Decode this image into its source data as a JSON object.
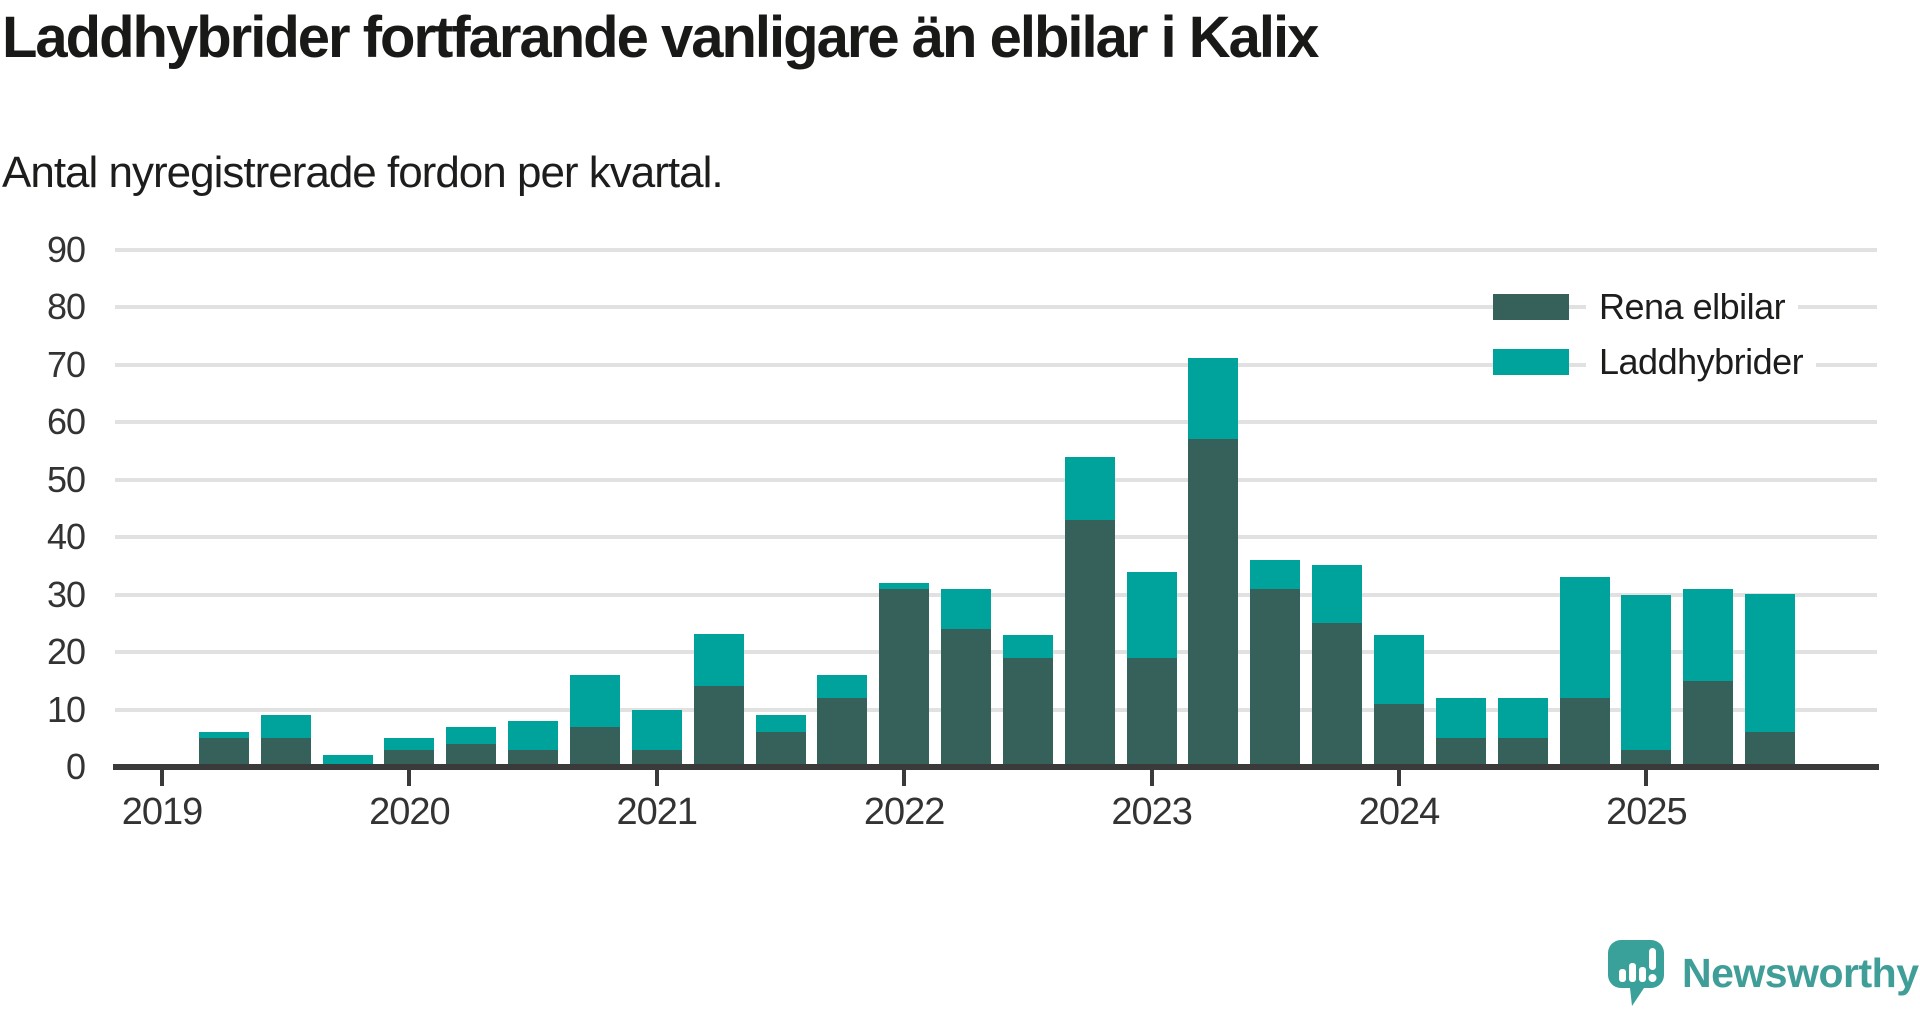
{
  "title": "Laddhybrider fortfarande vanligare än elbilar i Kalix",
  "subtitle": "Antal nyregistrerade fordon per kvartal.",
  "branding": {
    "logo_text": "Newsworthy",
    "logo_icon": "speech-bubble-bar-chart-icon"
  },
  "colors": {
    "rena_elbilar": "#36605a",
    "laddhybrider": "#00a39b",
    "gridline": "#e1e1e1",
    "axis": "#3a3a3a",
    "text": "#1d1d1b",
    "logo": "#3aa19a"
  },
  "legend": {
    "position": "top-right",
    "items": [
      {
        "label": "Rena elbilar",
        "color_key": "rena_elbilar"
      },
      {
        "label": "Laddhybrider",
        "color_key": "laddhybrider"
      }
    ]
  },
  "chart_data": {
    "type": "bar",
    "stacked": true,
    "title": "Laddhybrider fortfarande vanligare än elbilar i Kalix",
    "subtitle": "Antal nyregistrerade fordon per kvartal.",
    "xlabel": "",
    "ylabel": "",
    "ylim": [
      0,
      90
    ],
    "y_ticks": [
      0,
      10,
      20,
      30,
      40,
      50,
      60,
      70,
      80,
      90
    ],
    "grid": "horizontal",
    "legend_position": "top-right",
    "categories": [
      "2019 Q1",
      "2019 Q2",
      "2019 Q3",
      "2019 Q4",
      "2020 Q1",
      "2020 Q2",
      "2020 Q3",
      "2020 Q4",
      "2021 Q1",
      "2021 Q2",
      "2021 Q3",
      "2021 Q4",
      "2022 Q1",
      "2022 Q2",
      "2022 Q3",
      "2022 Q4",
      "2023 Q1",
      "2023 Q2",
      "2023 Q3",
      "2023 Q4",
      "2024 Q1",
      "2024 Q2",
      "2024 Q3",
      "2024 Q4",
      "2025 Q1",
      "2025 Q2",
      "2025 Q3"
    ],
    "x_tick_labels": [
      "2019",
      "2020",
      "2021",
      "2022",
      "2023",
      "2024",
      "2025"
    ],
    "x_tick_quarter_indices": [
      0,
      4,
      8,
      12,
      16,
      20,
      24
    ],
    "series": [
      {
        "name": "Rena elbilar",
        "color_key": "rena_elbilar",
        "values": [
          0,
          5,
          5,
          0,
          3,
          4,
          3,
          7,
          3,
          14,
          6,
          12,
          31,
          24,
          19,
          43,
          19,
          57,
          31,
          25,
          11,
          5,
          5,
          12,
          3,
          15,
          6
        ]
      },
      {
        "name": "Laddhybrider",
        "color_key": "laddhybrider",
        "values": [
          0,
          1,
          4,
          2,
          2,
          3,
          5,
          9,
          7,
          9,
          3,
          4,
          1,
          7,
          4,
          11,
          15,
          14,
          5,
          10,
          12,
          7,
          7,
          21,
          27,
          16,
          24
        ]
      }
    ],
    "totals": [
      0,
      6,
      9,
      2,
      5,
      7,
      8,
      16,
      10,
      23,
      9,
      16,
      32,
      31,
      23,
      54,
      34,
      71,
      36,
      35,
      23,
      12,
      12,
      33,
      30,
      31,
      30
    ]
  }
}
